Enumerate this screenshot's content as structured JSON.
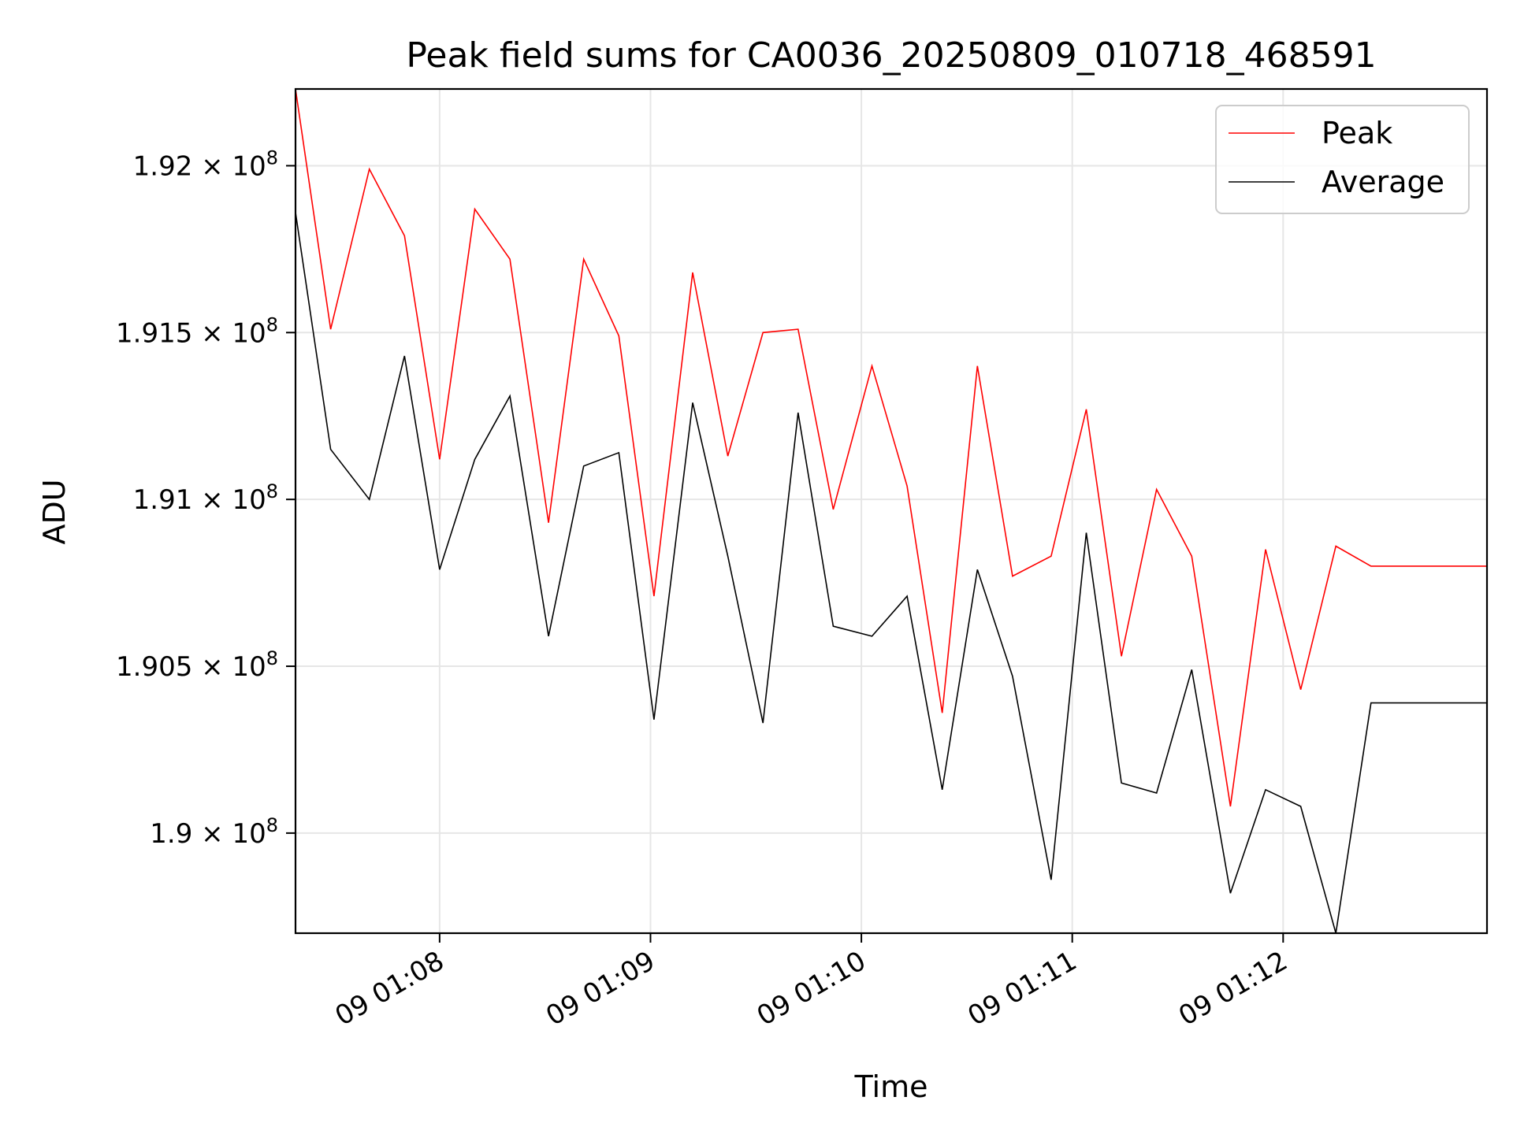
{
  "chart_data": {
    "type": "line",
    "title": "Peak field sums for CA0036_20250809_010718_468591",
    "xlabel": "Time",
    "ylabel": "ADU",
    "grid": true,
    "legend_position": "top-right",
    "x_tick_labels": [
      "09 01:08",
      "09 01:09",
      "09 01:10",
      "09 01:11",
      "09 01:12"
    ],
    "y_tick_labels": [
      {
        "value": 190000000,
        "mantissa": "1.9"
      },
      {
        "value": 190500000,
        "mantissa": "1.905"
      },
      {
        "value": 191000000,
        "mantissa": "1.91"
      },
      {
        "value": 191500000,
        "mantissa": "1.915"
      },
      {
        "value": 192000000,
        "mantissa": "1.92"
      }
    ],
    "y_tick_multiplier": "× 10",
    "y_tick_exponent": "8",
    "x_tick_times": [
      "01:08",
      "01:09",
      "01:10",
      "01:11",
      "01:12"
    ],
    "xlim": [
      "01:07:19",
      "01:12:58"
    ],
    "ylim": [
      189700000,
      192230000
    ],
    "x": [
      "01:07:19",
      "01:07:29",
      "01:07:40",
      "01:07:50",
      "01:08:00",
      "01:08:10",
      "01:08:20",
      "01:08:31",
      "01:08:41",
      "01:08:51",
      "01:09:01",
      "01:09:12",
      "01:09:22",
      "01:09:32",
      "01:09:42",
      "01:09:52",
      "01:10:03",
      "01:10:13",
      "01:10:23",
      "01:10:33",
      "01:10:43",
      "01:10:54",
      "01:11:04",
      "01:11:14",
      "01:11:24",
      "01:11:34",
      "01:11:45",
      "01:11:55",
      "01:12:05",
      "01:12:15",
      "01:12:25",
      "01:12:58"
    ],
    "series": [
      {
        "name": "Peak",
        "color": "#ff0000",
        "values": [
          192230000,
          191510000,
          191990000,
          191790000,
          191120000,
          191870000,
          191720000,
          190930000,
          191720000,
          191490000,
          190710000,
          191680000,
          191130000,
          191500000,
          191510000,
          190970000,
          191400000,
          191040000,
          190360000,
          191400000,
          190770000,
          190830000,
          191270000,
          190530000,
          191030000,
          190830000,
          190080000,
          190850000,
          190430000,
          190860000,
          190800000,
          190800000
        ]
      },
      {
        "name": "Average",
        "color": "#000000",
        "values": [
          191860000,
          191150000,
          191000000,
          191430000,
          190790000,
          191120000,
          191310000,
          190590000,
          191100000,
          191140000,
          190340000,
          191290000,
          190830000,
          190330000,
          191260000,
          190620000,
          190590000,
          190710000,
          190130000,
          190790000,
          190470000,
          189860000,
          190900000,
          190150000,
          190120000,
          190490000,
          189820000,
          190130000,
          190080000,
          189700000,
          190390000,
          190390000
        ]
      }
    ]
  }
}
